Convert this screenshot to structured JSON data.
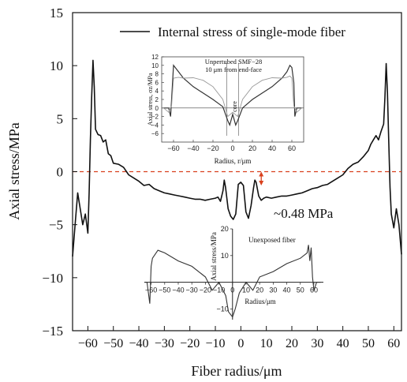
{
  "chart_data": {
    "type": "line",
    "xlabel": "Fiber radius/μm",
    "ylabel": "Axial stress/MPa",
    "xlim": [
      -66,
      63
    ],
    "ylim": [
      -15,
      15
    ],
    "xticks": [
      -60,
      -50,
      -40,
      -30,
      -20,
      -10,
      0,
      10,
      20,
      30,
      40,
      50,
      60
    ],
    "yticks": [
      15,
      10,
      5,
      0,
      -5,
      -10,
      -15
    ],
    "legend": {
      "position": "top-right",
      "entries": [
        "Internal stress of single-mode fiber"
      ]
    },
    "reference_line": {
      "y": 0,
      "color": "#d9411e",
      "style": "dashed"
    },
    "annotation": {
      "text": "~0.48 MPa",
      "x": 8,
      "y_from": 0,
      "y_to": -1.3
    },
    "series": [
      {
        "name": "Internal stress of single-mode fiber",
        "color": "#111111",
        "x": [
          -66,
          -65,
          -64,
          -63,
          -62,
          -61,
          -60,
          -59.5,
          -59,
          -58.5,
          -58,
          -57.5,
          -57,
          -56,
          -55,
          -54,
          -53,
          -52,
          -51,
          -50,
          -48,
          -46,
          -44,
          -42,
          -40,
          -38,
          -36,
          -34,
          -32,
          -30,
          -28,
          -26,
          -24,
          -22,
          -20,
          -18,
          -16,
          -14,
          -12,
          -10,
          -9,
          -8,
          -7,
          -6.5,
          -6,
          -5,
          -4,
          -3,
          -2,
          -1,
          0,
          1,
          2,
          3,
          4,
          5,
          5.5,
          6,
          7,
          8,
          9,
          10,
          12,
          14,
          16,
          18,
          20,
          22,
          24,
          26,
          28,
          30,
          32,
          34,
          36,
          38,
          40,
          42,
          44,
          46,
          48,
          50,
          51,
          52,
          53,
          54,
          55,
          56,
          56.5,
          57,
          57.5,
          58,
          58.5,
          59,
          60,
          61,
          62,
          63
        ],
        "y": [
          -8,
          -5,
          -2,
          -3.5,
          -5,
          -4,
          -5.8,
          -2,
          3,
          7,
          10.5,
          8,
          4,
          3.5,
          3.4,
          2.8,
          3,
          1.7,
          1.5,
          0.8,
          0.7,
          0.4,
          -0.3,
          -0.6,
          -0.9,
          -1.3,
          -1.2,
          -1.6,
          -1.8,
          -2,
          -2.1,
          -2.2,
          -2.3,
          -2.4,
          -2.5,
          -2.6,
          -2.6,
          -2.7,
          -2.6,
          -2.5,
          -2.4,
          -2.8,
          -1.8,
          -0.8,
          -1.5,
          -3.5,
          -4.2,
          -4.5,
          -4,
          -1.2,
          -1,
          -1.3,
          -3.8,
          -4.4,
          -3.2,
          -1.5,
          -0.8,
          -1,
          -2.3,
          -2.7,
          -2.5,
          -2.4,
          -2.5,
          -2.4,
          -2.3,
          -2.3,
          -2.2,
          -2.1,
          -2,
          -1.8,
          -1.6,
          -1.5,
          -1.3,
          -1.2,
          -0.9,
          -0.6,
          -0.3,
          0.3,
          0.7,
          0.9,
          1.4,
          2,
          2.6,
          3,
          3.4,
          3,
          3.8,
          4.5,
          7,
          10.2,
          7.5,
          3,
          -1.5,
          -4,
          -5.3,
          -3.5,
          -5,
          -7.8
        ]
      }
    ]
  },
  "inset_top": {
    "title_line1": "Unpertubed SMF−28",
    "title_line2": "10 μm from end-face",
    "core_label": "core",
    "ylabel": "Axial stress, σz/MPa",
    "xlabel": "Radius, r/μm",
    "xlim": [
      -72,
      72
    ],
    "ylim": [
      -8,
      12
    ],
    "xticks": [
      -60,
      -40,
      -20,
      0,
      20,
      40,
      60
    ],
    "yticks": [
      12,
      10,
      8,
      6,
      4,
      2,
      0,
      -2,
      -4,
      -6
    ],
    "series": [
      {
        "color": "#333333",
        "x": [
          -70,
          -65,
          -63,
          -60,
          -55,
          -50,
          -40,
          -30,
          -20,
          -10,
          -5,
          -3,
          0,
          3,
          5,
          10,
          20,
          30,
          40,
          50,
          55,
          58,
          60,
          62,
          63,
          65,
          70
        ],
        "y": [
          0,
          0,
          -2,
          10,
          8.5,
          7,
          5,
          3.5,
          2,
          0.3,
          -3,
          -4,
          -1.5,
          -4,
          -3,
          0,
          2,
          3.5,
          5,
          7,
          8.5,
          10,
          9.5,
          6,
          -2,
          0,
          0
        ]
      },
      {
        "color": "#999999",
        "x": [
          -70,
          -65,
          -62,
          -60,
          -55,
          -50,
          -40,
          -30,
          -20,
          -10,
          -5,
          0,
          5,
          10,
          20,
          30,
          40,
          50,
          55,
          58,
          60,
          62,
          65,
          70
        ],
        "y": [
          0,
          -1,
          0.5,
          7,
          7.2,
          7,
          7.1,
          6.5,
          5,
          2,
          -2,
          -1,
          -2,
          2,
          5,
          6.5,
          7.1,
          7,
          7.2,
          7.5,
          7,
          0.5,
          -1,
          0
        ]
      }
    ]
  },
  "inset_bottom": {
    "label": "Unexposed fiber",
    "ylabel": "Axial stress/MPa",
    "xlabel": "Radius/μm",
    "xlim": [
      -65,
      67
    ],
    "ylim": [
      -14,
      20
    ],
    "xticks": [
      -60,
      -50,
      -40,
      -30,
      -20,
      -10,
      0,
      10,
      20,
      30,
      40,
      50,
      60
    ],
    "yticks": [
      20,
      10,
      -10
    ],
    "series": [
      {
        "color": "#333333",
        "x": [
          -65,
          -63,
          -61,
          -60,
          -59,
          -55,
          -50,
          -40,
          -30,
          -20,
          -15,
          -10,
          -5,
          -3,
          0,
          2,
          5,
          10,
          15,
          20,
          30,
          40,
          50,
          55,
          56,
          57,
          58,
          59,
          60,
          62,
          65
        ],
        "y": [
          0,
          0,
          -8,
          6,
          9,
          12,
          11,
          8,
          6,
          2,
          -3,
          0,
          -5,
          -11,
          -13,
          -10,
          -4,
          0,
          -3,
          2,
          4,
          7,
          9,
          11,
          14,
          8,
          13,
          2,
          -3,
          0,
          0
        ]
      }
    ]
  }
}
